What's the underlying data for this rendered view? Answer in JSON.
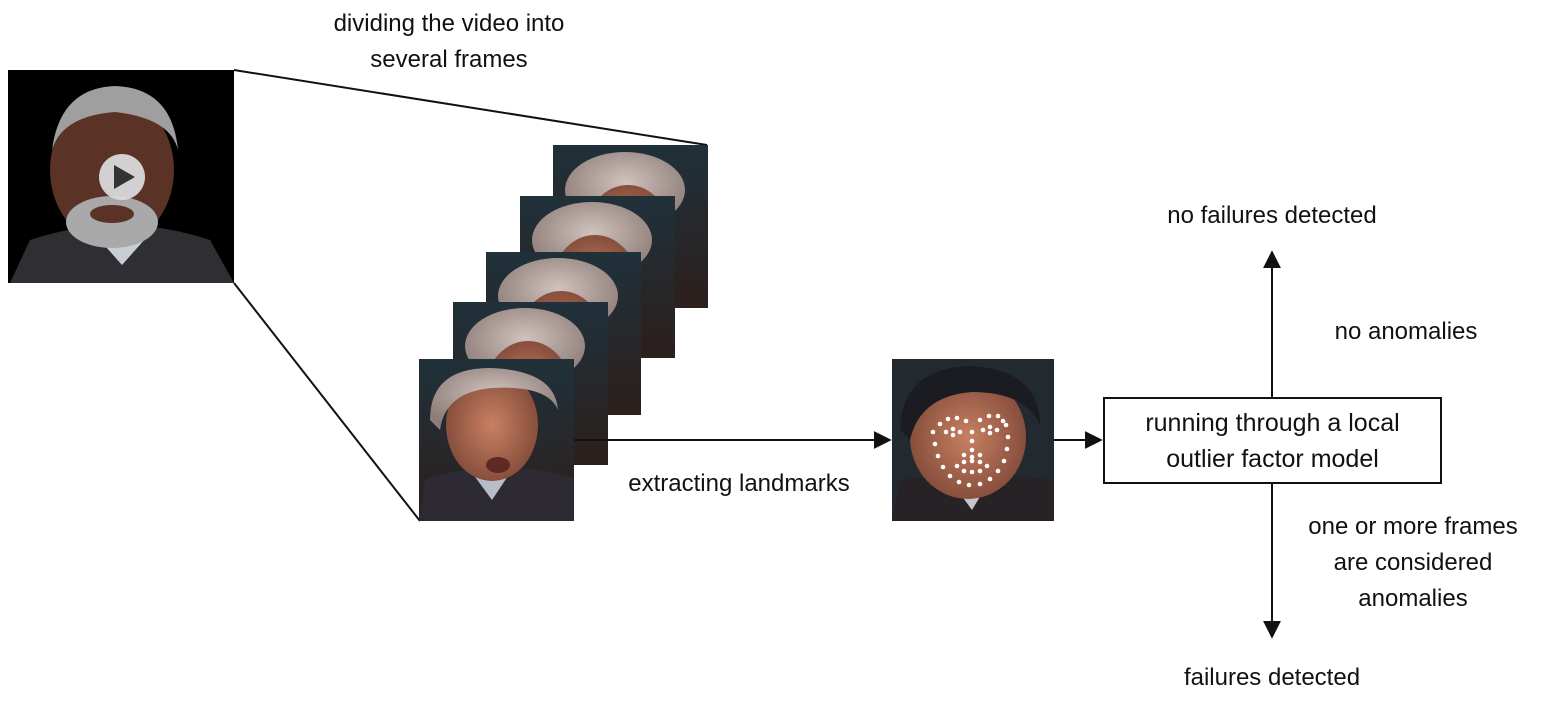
{
  "labels": {
    "split_line1": "dividing the video into",
    "split_line2": "several frames",
    "extract": "extracting landmarks",
    "no_failures": "no failures detected",
    "no_anomalies": "no anomalies",
    "anomaly_line1": "one or more frames",
    "anomaly_line2": "are considered",
    "anomaly_line3": "anomalies",
    "failures": "failures detected"
  },
  "model_box": {
    "line1": "running through a local",
    "line2": "outlier factor model"
  },
  "icons": {
    "video": "play-icon"
  },
  "colors": {
    "stroke": "#111111",
    "video_bg": "#000000",
    "frame_bg": "#2a1e1a",
    "skin": "#b9705a",
    "hair": "#b8aaa6",
    "landmark": "#ffffff"
  }
}
